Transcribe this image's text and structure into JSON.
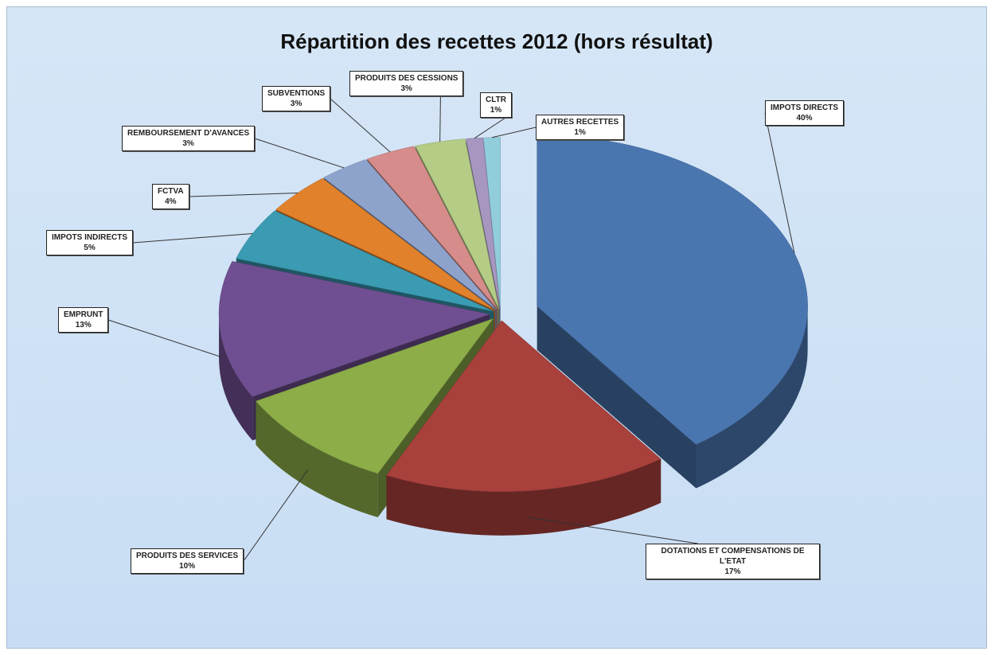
{
  "chart_data": {
    "type": "pie",
    "title": "Répartition des recettes 2012 (hors résultat)",
    "categories": [
      "IMPOTS DIRECTS",
      "DOTATIONS ET COMPENSATIONS DE L'ETAT",
      "PRODUITS DES SERVICES",
      "EMPRUNT",
      "IMPOTS INDIRECTS",
      "FCTVA",
      "REMBOURSEMENT D'AVANCES",
      "SUBVENTIONS",
      "PRODUITS DES CESSIONS",
      "CLTR",
      "AUTRES RECETTES"
    ],
    "values": [
      40,
      17,
      10,
      13,
      5,
      4,
      3,
      3,
      3,
      1,
      1
    ],
    "value_labels": [
      "40%",
      "17%",
      "10%",
      "13%",
      "5%",
      "4%",
      "3%",
      "3%",
      "3%",
      "1%",
      "1%"
    ],
    "colors": [
      "#4a76b0",
      "#a8403c",
      "#8cad48",
      "#6f4f91",
      "#3a9bb2",
      "#e1812b",
      "#8ea3cc",
      "#d58c8a",
      "#b4cc85",
      "#a696c0",
      "#92cddc"
    ]
  }
}
